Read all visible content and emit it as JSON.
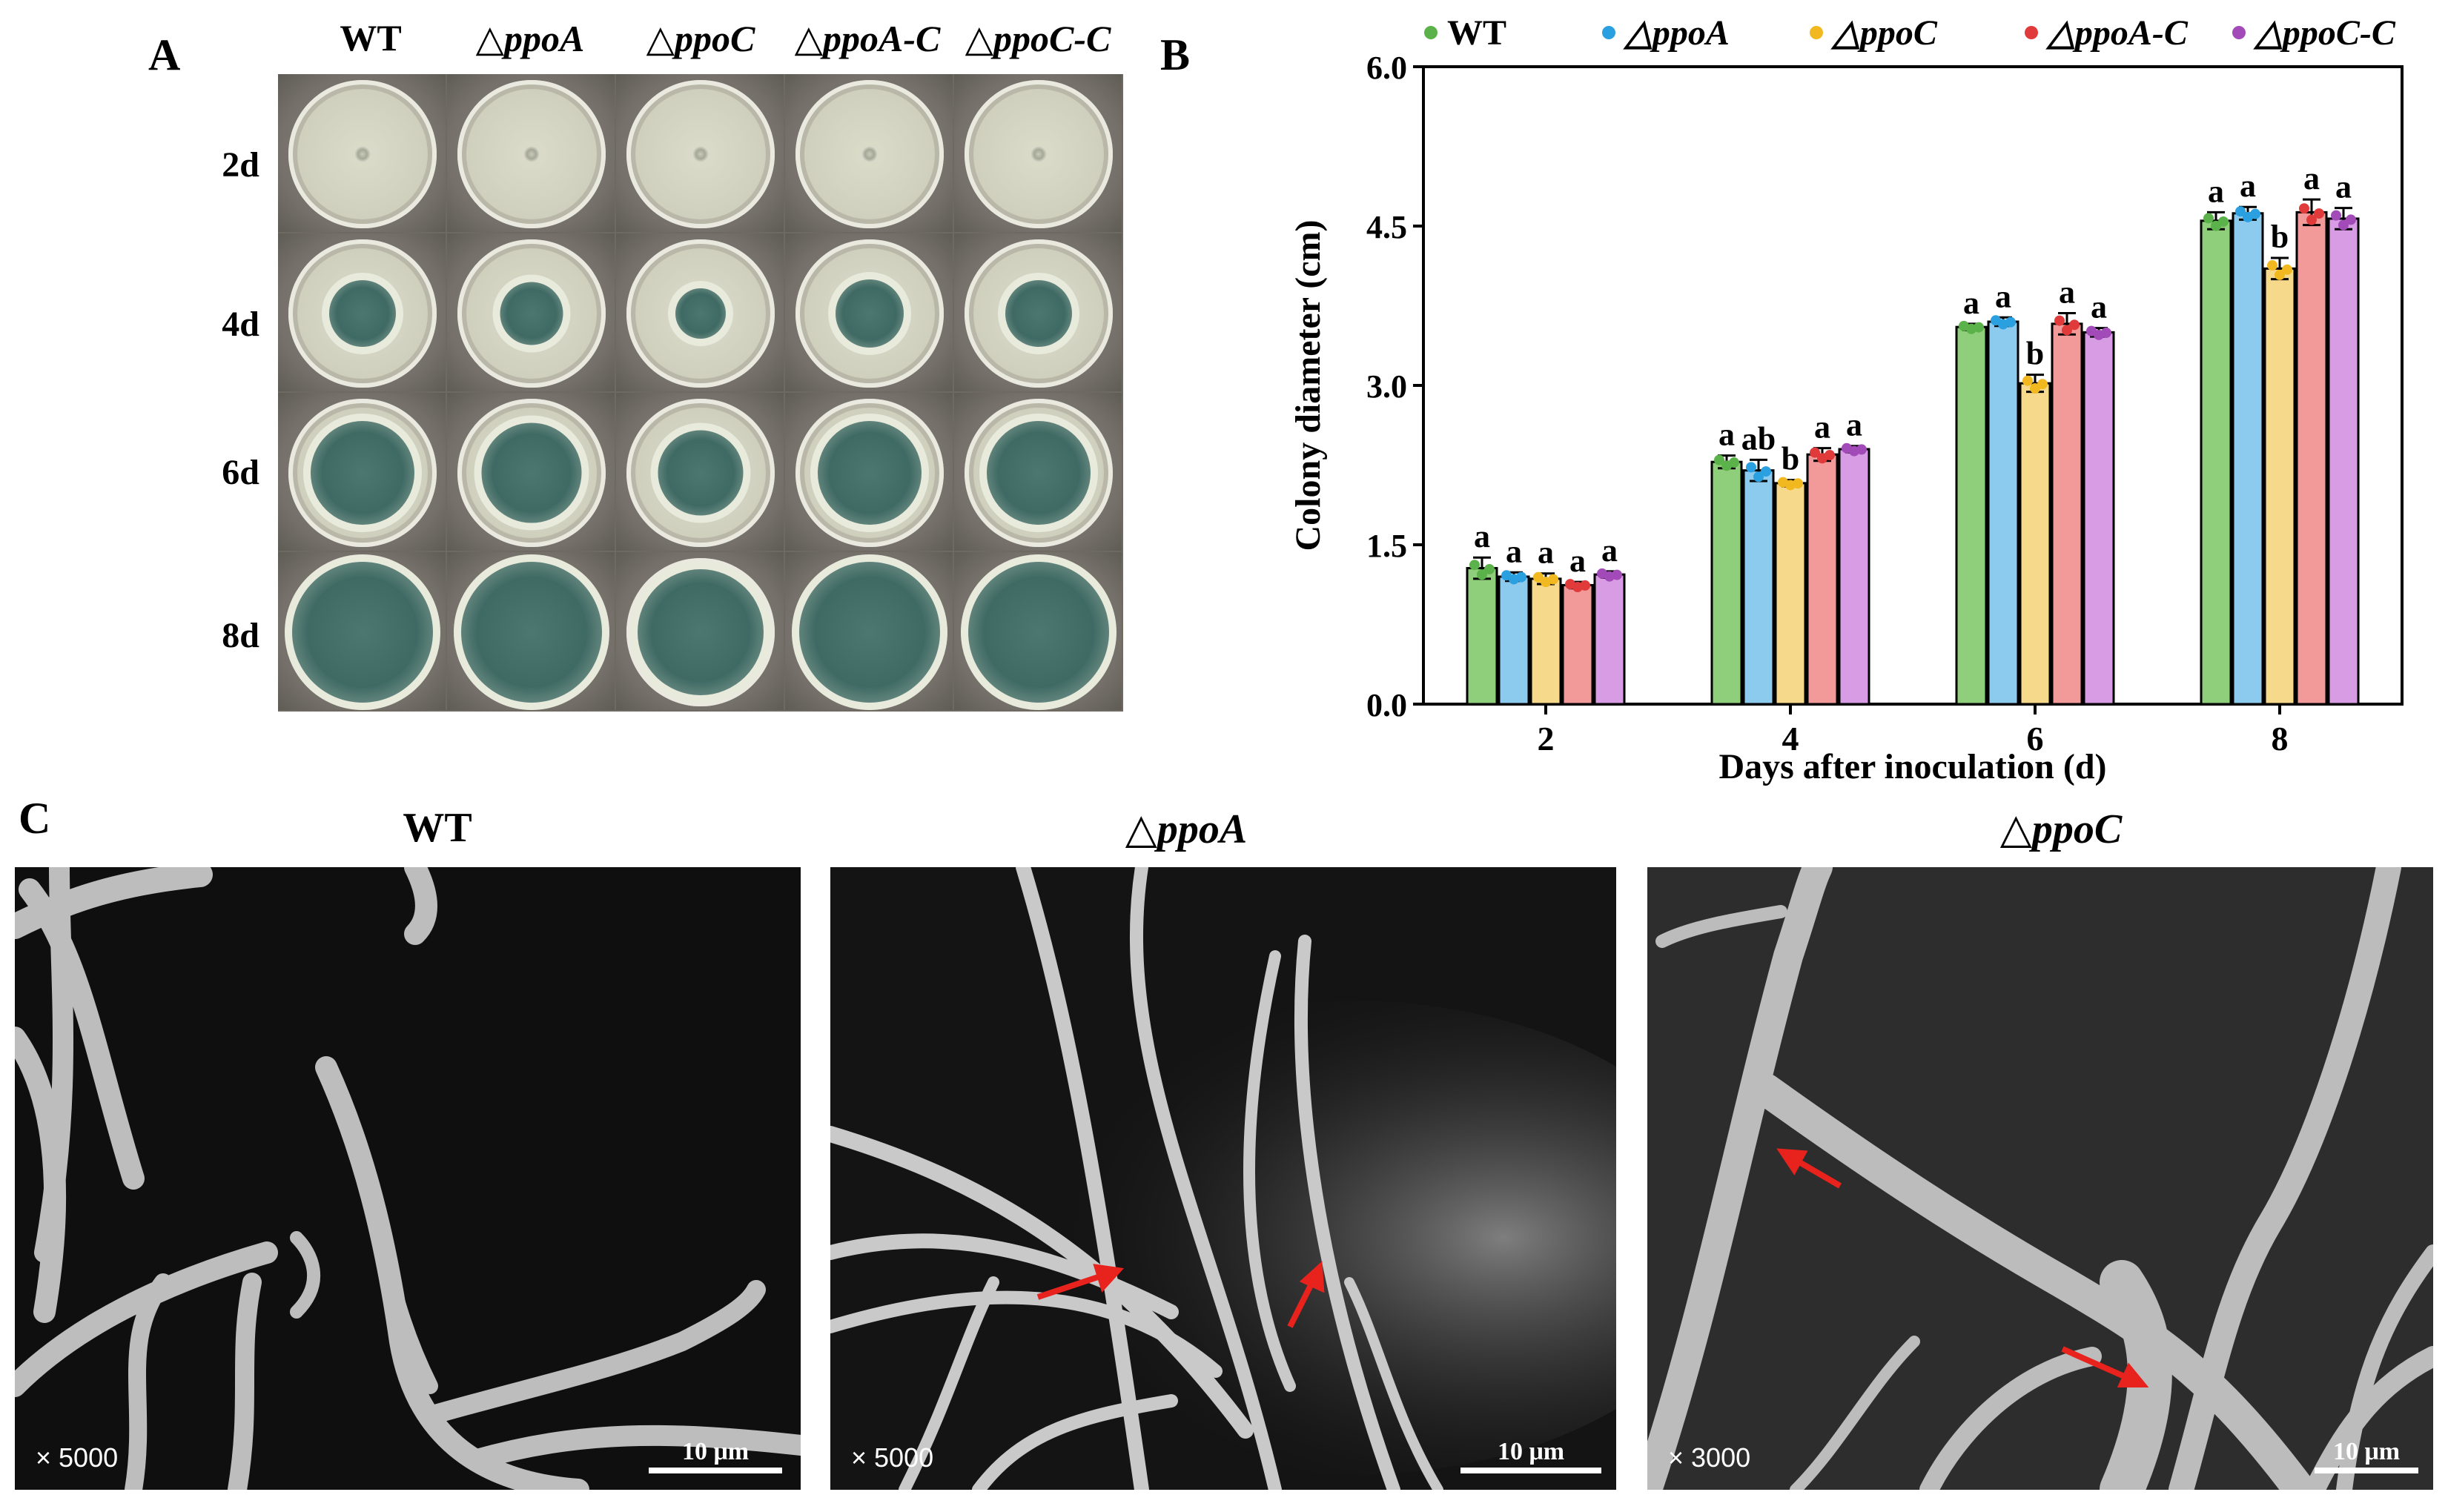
{
  "panels": {
    "a": "A",
    "b": "B",
    "c": "C"
  },
  "panel_a": {
    "columns": [
      "WT",
      "△ppoA",
      "△ppoC",
      "△ppoA-C",
      "△ppoC-C"
    ],
    "rows": [
      "2d",
      "4d",
      "6d",
      "8d"
    ]
  },
  "chart_data": {
    "type": "bar",
    "ylabel": "Colony diameter (cm)",
    "xlabel": "Days after inoculation (d)",
    "categories": [
      "2",
      "4",
      "6",
      "8"
    ],
    "ylim": [
      0,
      6
    ],
    "yticks": [
      "0.0",
      "1.5",
      "3.0",
      "4.5",
      "6.0"
    ],
    "legend_position": "top",
    "series": [
      {
        "name": "WT",
        "color": "#8fce7a",
        "dot": "#5cb24a",
        "values": [
          1.28,
          2.28,
          3.55,
          4.55
        ],
        "errors": [
          0.1,
          0.06,
          0.03,
          0.08
        ],
        "letters": [
          "a",
          "a",
          "a",
          "a"
        ]
      },
      {
        "name": "△ppoA",
        "color": "#8ccbee",
        "dot": "#2aa0e0",
        "values": [
          1.2,
          2.2,
          3.6,
          4.62
        ],
        "errors": [
          0.04,
          0.1,
          0.04,
          0.06
        ],
        "letters": [
          "a",
          "ab",
          "a",
          "a"
        ]
      },
      {
        "name": "△ppoC",
        "color": "#f6d98a",
        "dot": "#f2b820",
        "values": [
          1.18,
          2.08,
          3.02,
          4.1
        ],
        "errors": [
          0.05,
          0.03,
          0.08,
          0.1
        ],
        "letters": [
          "a",
          "b",
          "b",
          "b"
        ]
      },
      {
        "name": "△ppoA-C",
        "color": "#f29a9a",
        "dot": "#e03a3a",
        "values": [
          1.12,
          2.35,
          3.58,
          4.63
        ],
        "errors": [
          0.03,
          0.06,
          0.1,
          0.12
        ],
        "letters": [
          "a",
          "a",
          "a",
          "a"
        ]
      },
      {
        "name": "△ppoC-C",
        "color": "#d79ce3",
        "dot": "#a24ab8",
        "values": [
          1.22,
          2.4,
          3.5,
          4.57
        ],
        "errors": [
          0.03,
          0.03,
          0.04,
          0.1
        ],
        "letters": [
          "a",
          "a",
          "a",
          "a"
        ]
      }
    ]
  },
  "panel_c": {
    "images": [
      {
        "title": "WT",
        "magnification": "× 5000",
        "scale": "10 μm"
      },
      {
        "title": "△ppoA",
        "magnification": "× 5000",
        "scale": "10 μm"
      },
      {
        "title": "△ppoC",
        "magnification": "× 3000",
        "scale": "10 μm"
      }
    ],
    "arrow_color": "#e8221c"
  }
}
